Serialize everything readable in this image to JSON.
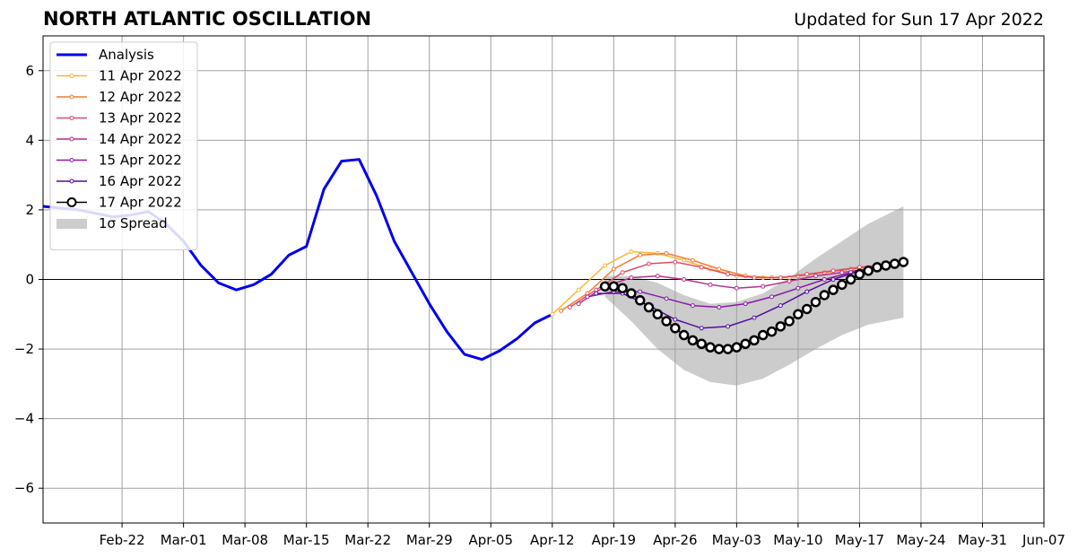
{
  "chart_data": {
    "type": "line",
    "title": "NORTH ATLANTIC OSCILLATION",
    "subtitle": "Updated for Sun 17 Apr 2022",
    "xlabel": "",
    "ylabel": "",
    "xlim": [
      "2022-02-13",
      "2022-06-07"
    ],
    "ylim": [
      -7,
      7
    ],
    "grid": true,
    "legend_position": "top-left",
    "x_ticks": [
      "2022-02-22",
      "2022-03-01",
      "2022-03-08",
      "2022-03-15",
      "2022-03-22",
      "2022-03-29",
      "2022-04-05",
      "2022-04-12",
      "2022-04-19",
      "2022-04-26",
      "2022-05-03",
      "2022-05-10",
      "2022-05-17",
      "2022-05-24",
      "2022-05-31",
      "2022-06-07"
    ],
    "x_tick_labels": [
      "Feb-22",
      "Mar-01",
      "Mar-08",
      "Mar-15",
      "Mar-22",
      "Mar-29",
      "Apr-05",
      "Apr-12",
      "Apr-19",
      "Apr-26",
      "May-03",
      "May-10",
      "May-17",
      "May-24",
      "May-31",
      "Jun-07"
    ],
    "y_ticks": [
      -6,
      -4,
      -2,
      0,
      2,
      4,
      6
    ],
    "y_tick_labels": [
      "−6",
      "−4",
      "−2",
      "0",
      "2",
      "4",
      "6"
    ],
    "series": [
      {
        "name": "Analysis",
        "color": "#0000ee",
        "style": "line",
        "x": [
          "2022-02-13",
          "2022-02-15",
          "2022-02-17",
          "2022-02-19",
          "2022-02-21",
          "2022-02-23",
          "2022-02-25",
          "2022-02-27",
          "2022-03-01",
          "2022-03-03",
          "2022-03-05",
          "2022-03-07",
          "2022-03-09",
          "2022-03-11",
          "2022-03-13",
          "2022-03-15",
          "2022-03-17",
          "2022-03-19",
          "2022-03-21",
          "2022-03-23",
          "2022-03-25",
          "2022-03-27",
          "2022-03-29",
          "2022-03-31",
          "2022-04-02",
          "2022-04-04",
          "2022-04-06",
          "2022-04-08",
          "2022-04-10",
          "2022-04-12"
        ],
        "values": [
          2.1,
          2.05,
          2.0,
          1.9,
          1.8,
          1.85,
          1.95,
          1.6,
          1.1,
          0.4,
          -0.1,
          -0.3,
          -0.15,
          0.15,
          0.7,
          0.95,
          2.6,
          3.4,
          3.45,
          2.4,
          1.1,
          0.2,
          -0.7,
          -1.5,
          -2.15,
          -2.3,
          -2.05,
          -1.7,
          -1.25,
          -1.0
        ]
      },
      {
        "name": "11 Apr 2022",
        "color": "#fcb533",
        "style": "line-small-markers",
        "x": [
          "2022-04-12",
          "2022-04-15",
          "2022-04-18",
          "2022-04-21",
          "2022-04-24",
          "2022-04-27",
          "2022-04-30",
          "2022-05-03",
          "2022-05-06",
          "2022-05-09"
        ],
        "values": [
          -1.0,
          -0.3,
          0.4,
          0.8,
          0.75,
          0.55,
          0.3,
          0.1,
          0.05,
          0.05
        ]
      },
      {
        "name": "12 Apr 2022",
        "color": "#f47b35",
        "style": "line-small-markers",
        "x": [
          "2022-04-13",
          "2022-04-16",
          "2022-04-19",
          "2022-04-22",
          "2022-04-25",
          "2022-04-28",
          "2022-05-01",
          "2022-05-04",
          "2022-05-07",
          "2022-05-10",
          "2022-05-13",
          "2022-05-16",
          "2022-05-18"
        ],
        "values": [
          -0.9,
          -0.4,
          0.3,
          0.7,
          0.75,
          0.55,
          0.3,
          0.1,
          0.05,
          0.1,
          0.2,
          0.3,
          0.35
        ]
      },
      {
        "name": "13 Apr 2022",
        "color": "#e04a68",
        "style": "line-small-markers",
        "x": [
          "2022-04-14",
          "2022-04-17",
          "2022-04-20",
          "2022-04-23",
          "2022-04-26",
          "2022-04-29",
          "2022-05-02",
          "2022-05-05",
          "2022-05-08",
          "2022-05-11",
          "2022-05-14",
          "2022-05-17",
          "2022-05-19"
        ],
        "values": [
          -0.8,
          -0.3,
          0.2,
          0.45,
          0.5,
          0.35,
          0.15,
          0.05,
          0.05,
          0.15,
          0.25,
          0.35,
          0.4
        ]
      },
      {
        "name": "14 Apr 2022",
        "color": "#b82f8e",
        "style": "line-small-markers",
        "x": [
          "2022-04-15",
          "2022-04-18",
          "2022-04-21",
          "2022-04-24",
          "2022-04-27",
          "2022-04-30",
          "2022-05-03",
          "2022-05-06",
          "2022-05-09",
          "2022-05-12",
          "2022-05-15",
          "2022-05-18",
          "2022-05-20"
        ],
        "values": [
          -0.7,
          -0.2,
          0.05,
          0.1,
          0.0,
          -0.15,
          -0.25,
          -0.2,
          -0.05,
          0.1,
          0.2,
          0.3,
          0.35
        ]
      },
      {
        "name": "15 Apr 2022",
        "color": "#8d1aa6",
        "style": "line-small-markers",
        "x": [
          "2022-04-16",
          "2022-04-19",
          "2022-04-22",
          "2022-04-25",
          "2022-04-28",
          "2022-05-01",
          "2022-05-04",
          "2022-05-07",
          "2022-05-10",
          "2022-05-13",
          "2022-05-16",
          "2022-05-19",
          "2022-05-20"
        ],
        "values": [
          -0.5,
          -0.35,
          -0.35,
          -0.55,
          -0.75,
          -0.8,
          -0.7,
          -0.5,
          -0.25,
          0.0,
          0.2,
          0.35,
          0.35
        ]
      },
      {
        "name": "16 Apr 2022",
        "color": "#540c9e",
        "style": "line-small-markers",
        "x": [
          "2022-04-17",
          "2022-04-20",
          "2022-04-23",
          "2022-04-26",
          "2022-04-29",
          "2022-05-02",
          "2022-05-05",
          "2022-05-08",
          "2022-05-11",
          "2022-05-14",
          "2022-05-17",
          "2022-05-20",
          "2022-05-21"
        ],
        "values": [
          -0.4,
          -0.4,
          -0.75,
          -1.15,
          -1.4,
          -1.35,
          -1.1,
          -0.75,
          -0.35,
          0.0,
          0.25,
          0.4,
          0.4
        ]
      },
      {
        "name": "17 Apr 2022",
        "color": "#000000",
        "style": "line-large-open-markers",
        "x": [
          "2022-04-18",
          "2022-04-19",
          "2022-04-20",
          "2022-04-21",
          "2022-04-22",
          "2022-04-23",
          "2022-04-24",
          "2022-04-25",
          "2022-04-26",
          "2022-04-27",
          "2022-04-28",
          "2022-04-29",
          "2022-04-30",
          "2022-05-01",
          "2022-05-02",
          "2022-05-03",
          "2022-05-04",
          "2022-05-05",
          "2022-05-06",
          "2022-05-07",
          "2022-05-08",
          "2022-05-09",
          "2022-05-10",
          "2022-05-11",
          "2022-05-12",
          "2022-05-13",
          "2022-05-14",
          "2022-05-15",
          "2022-05-16",
          "2022-05-17",
          "2022-05-18",
          "2022-05-19",
          "2022-05-20",
          "2022-05-21",
          "2022-05-22"
        ],
        "values": [
          -0.2,
          -0.2,
          -0.25,
          -0.4,
          -0.6,
          -0.8,
          -1.0,
          -1.2,
          -1.4,
          -1.6,
          -1.75,
          -1.85,
          -1.95,
          -2.0,
          -2.0,
          -1.95,
          -1.85,
          -1.75,
          -1.6,
          -1.5,
          -1.35,
          -1.2,
          -1.0,
          -0.85,
          -0.65,
          -0.45,
          -0.3,
          -0.15,
          0.0,
          0.15,
          0.25,
          0.35,
          0.4,
          0.45,
          0.5
        ]
      },
      {
        "name": "1σ Spread",
        "color": "#cccccc",
        "style": "band",
        "x": [
          "2022-04-18",
          "2022-04-21",
          "2022-04-24",
          "2022-04-27",
          "2022-04-30",
          "2022-05-03",
          "2022-05-06",
          "2022-05-09",
          "2022-05-12",
          "2022-05-15",
          "2022-05-18",
          "2022-05-22"
        ],
        "upper": [
          0.1,
          0.1,
          -0.1,
          -0.45,
          -0.7,
          -0.65,
          -0.4,
          0.05,
          0.6,
          1.1,
          1.6,
          2.1
        ],
        "lower": [
          -0.5,
          -1.2,
          -2.0,
          -2.6,
          -2.95,
          -3.05,
          -2.85,
          -2.45,
          -2.0,
          -1.6,
          -1.3,
          -1.1
        ]
      }
    ]
  }
}
